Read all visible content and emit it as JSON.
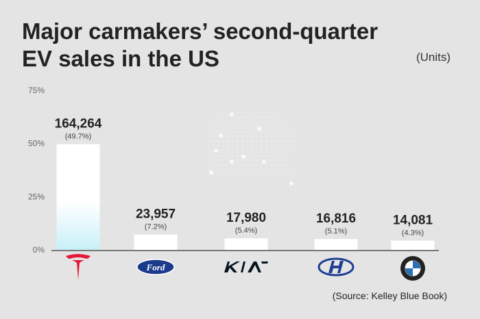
{
  "header": {
    "title_line1": "Major carmakers’ second-quarter",
    "title_line2": "EV sales in the US",
    "units": "(Units)"
  },
  "footer": {
    "source": "(Source: Kelley Blue Book)"
  },
  "colors": {
    "background": "#e4e4e4",
    "bar": "#ffffff",
    "tesla_bar_gradient_bottom": "#c8f0f8",
    "axis": "#555555",
    "tesla_red": "#e31937",
    "ford_blue": "#1b3a8c",
    "kia_black": "#05141f",
    "hyundai_blue": "#1f3f94"
  },
  "chart_data": {
    "type": "bar",
    "categories": [
      "Tesla",
      "Ford",
      "Kia",
      "Hyundai",
      "BMW"
    ],
    "logos": [
      "tesla-logo-icon",
      "ford-logo-icon",
      "kia-logo-icon",
      "hyundai-logo-icon",
      "bmw-logo-icon"
    ],
    "values": [
      164264,
      23957,
      17980,
      16816,
      14081
    ],
    "value_labels": [
      "164,264",
      "23,957",
      "17,980",
      "16,816",
      "14,081"
    ],
    "share_percent": [
      49.7,
      7.2,
      5.4,
      5.1,
      4.3
    ],
    "share_labels": [
      "(49.7%)",
      "(7.2%)",
      "(5.4%)",
      "(5.1%)",
      "(4.3%)"
    ],
    "y_axis_ticks": [
      "0%",
      "25%",
      "50%",
      "75%"
    ],
    "y_axis_tick_values": [
      0,
      25,
      50,
      75
    ],
    "ylim": [
      0,
      75
    ],
    "grid": false,
    "legend": "none"
  }
}
